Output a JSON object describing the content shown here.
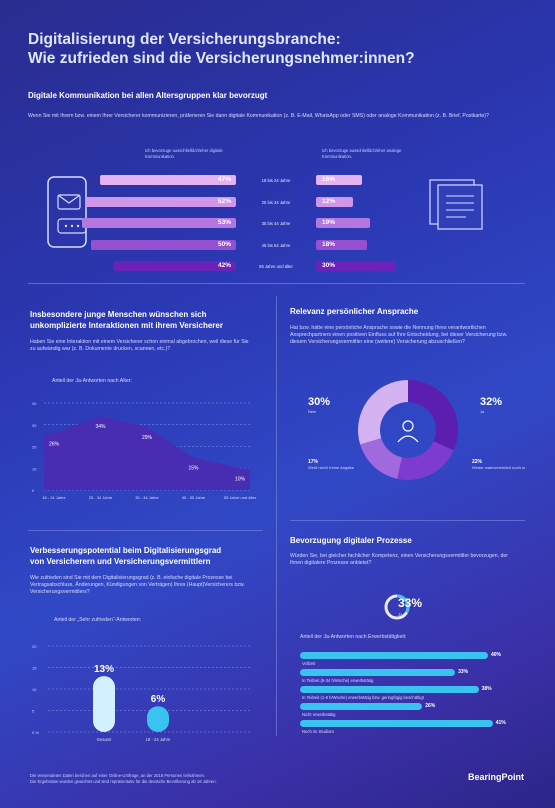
{
  "header": {
    "title_line1": "Digitalisierung der Versicherungsbranche:",
    "title_line2": "Wie zufrieden sind die Versicherungsnehmer:innen?"
  },
  "section1": {
    "heading": "Digitale Kommunikation bei allen Altersgruppen klar bevorzugt",
    "question": "Wenn Sie mit Ihrem bzw. einem Ihrer Versicherer kommunizieren, präferieren Sie dann digitale Kommunikation (z. B. E-Mail, WhatsApp oder SMS) oder analoge Kommunikation (z. B. Brief, Postkarte)?",
    "left_legend": "Ich bevorzuge ausschließlich/eher digitale Kommunikation.",
    "right_legend": "Ich bevorzuge ausschließlich/eher analoge Kommunikation."
  },
  "section2": {
    "heading_line1": "Insbesondere junge Menschen wünschen sich",
    "heading_line2": "unkomplizierte Interaktionen mit ihrem Versicherer",
    "question": "Haben Sie eine Interaktion mit einem Versicherer schon einmal abgebrochen, weil diese für Sie zu aufwändig war (z. B. Dokumente drucken, scannen, etc.)?",
    "chart_label": "Anteil der Ja-Antworten nach Alter:"
  },
  "section3": {
    "heading": "Relevanz persönlicher Ansprache",
    "question": "Hat bzw. hätte eine persönliche Ansprache sowie die Nennung Ihres verantwortlichen Ansprechpartners einen positiven Einfluss auf Ihre Entscheidung, bei dieser Versicherung bzw. diesem Versicherungsvermittler eine (weitere) Versicherung abzuschließen?"
  },
  "section4": {
    "heading_line1": "Verbesserungspotential beim Digitalisierungsgrad",
    "heading_line2": "von Versicherern und Versicherungsvermittlern",
    "question": "Wie zufrieden sind Sie mit dem Digitalisierungsgrad (z. B. einfache digitale Prozesse bei Vertragsabschluss, Änderungen, Kündigungen von Verträgen) Ihres (Haupt)Versicherers bzw. Versicherungsvermittlers?",
    "chart_label": "Anteil der „Sehr zufrieden“-Antworten:"
  },
  "section5": {
    "heading": "Bevorzugung digitaler Prozesse",
    "question": "Würden Sie, bei gleicher fachlicher Kompetenz, einen Versicherungsvermittler bevorzugen, der Ihnen digitalere Prozesse anbietet?",
    "share_value": "33%",
    "share_label": "Ja",
    "chart_label": "Anteil der Ja-Antworten nach Erwerbstätigkeit:"
  },
  "footer": {
    "note_line1": "Die verwendeten Daten beruhen auf einer Online-Umfrage, an der 2016 Personen teilnahmen.",
    "note_line2": "Die Ergebnisse wurden gewichtet und sind repräsentativ für die deutsche Bevölkerung ab 18 Jahren.",
    "logo": "BearingPoint"
  },
  "chart_data": [
    {
      "type": "bar",
      "categories": [
        "18 bis 24 Jahre",
        "25 bis 34 Jahre",
        "35 bis 44 Jahre",
        "45 bis 54 Jahre",
        "55 Jahre und älter"
      ],
      "series": [
        {
          "name": "Ich bevorzuge ausschließlich/eher digitale Kommunikation.",
          "values": [
            47,
            52,
            53,
            50,
            42
          ],
          "labels": [
            "47%",
            "52%",
            "53%",
            "50%",
            "42%"
          ],
          "color": "#c992e6"
        },
        {
          "name": "Ich bevorzuge ausschließlich/eher analoge Kommunikation.",
          "values": [
            16,
            12,
            19,
            18,
            30
          ],
          "labels": [
            "16%",
            "12%",
            "19%",
            "18%",
            "30%"
          ],
          "color": "#6b2ec4"
        }
      ],
      "colors": [
        "#e6b3f2",
        "#cf96ea",
        "#b377df",
        "#9550cf",
        "#6a22b8"
      ]
    },
    {
      "type": "area",
      "categories": [
        "18 - 24 Jahre",
        "25 - 34 Jahre",
        "35 - 44 Jahre",
        "45 - 55 Jahre",
        "55 Jahre und älter"
      ],
      "values": [
        26,
        34,
        29,
        15,
        10
      ],
      "labels": [
        "26%",
        "34%",
        "29%",
        "15%",
        "10%"
      ],
      "yticks": [
        "40",
        "30",
        "20",
        "10",
        "0"
      ],
      "ylim": [
        0,
        40
      ]
    },
    {
      "type": "pie",
      "slices": [
        {
          "label": "Ja",
          "value": 32,
          "text": "32%",
          "color": "#5b1eb0"
        },
        {
          "label": "Weder wahrscheinlich noch unwahrscheinlich",
          "value": 22,
          "text": "22%",
          "color": "#7e3bd0"
        },
        {
          "label": "Weiß nicht/ Keine Angabe",
          "value": 17,
          "text": "17%",
          "color": "#a069de"
        },
        {
          "label": "Nein",
          "value": 30,
          "text": "30%",
          "color": "#d5b2f2"
        }
      ]
    },
    {
      "type": "bar",
      "categories": [
        "Gesamt",
        "18 - 24 Jahre"
      ],
      "values": [
        13,
        6
      ],
      "labels": [
        "13%",
        "6%"
      ],
      "yticks": [
        "20",
        "15",
        "10",
        "5",
        "0 %"
      ],
      "ylim": [
        0,
        20
      ],
      "colors": [
        "#d3f0ff",
        "#39c3ee"
      ]
    },
    {
      "type": "bar",
      "orientation": "horizontal",
      "categories": [
        "Vollzeit",
        "In Teilzeit (8-34 h/Woche) erwerbstätig",
        "In Teilzeit (1-8 h/Woche) erwerbstätig bzw. geringfügig beschäftigt",
        "Nicht erwerbstätig",
        "Noch im Studium"
      ],
      "values": [
        40,
        33,
        38,
        26,
        41
      ],
      "labels": [
        "40%",
        "33%",
        "38%",
        "26%",
        "41%"
      ],
      "color": "#39c3ee"
    }
  ]
}
